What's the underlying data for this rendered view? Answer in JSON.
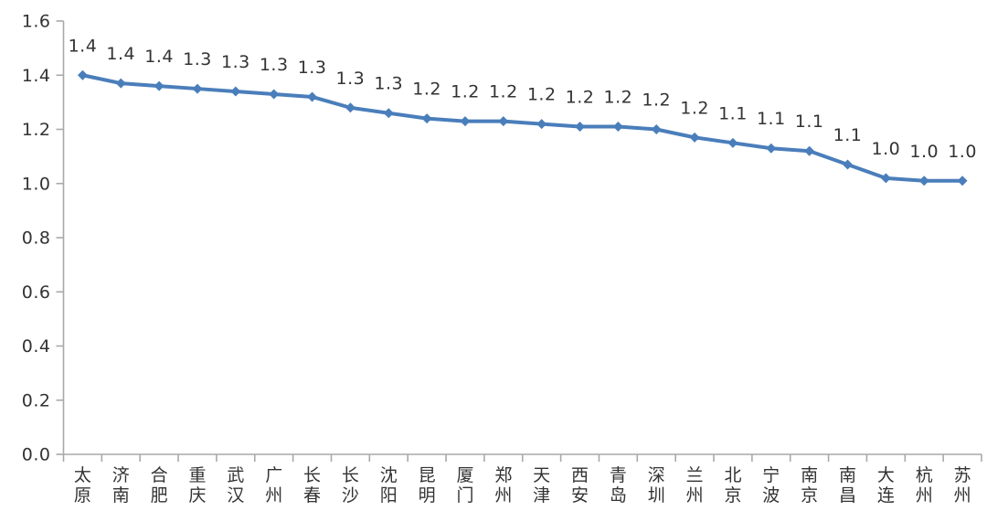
{
  "chart_data": {
    "type": "line",
    "title": "",
    "xlabel": "",
    "ylabel": "",
    "categories": [
      "太原",
      "济南",
      "合肥",
      "重庆",
      "武汉",
      "广州",
      "长春",
      "长沙",
      "沈阳",
      "昆明",
      "厦门",
      "郑州",
      "天津",
      "西安",
      "青岛",
      "深圳",
      "兰州",
      "北京",
      "宁波",
      "南京",
      "南昌",
      "大连",
      "杭州",
      "苏州"
    ],
    "values": [
      1.4,
      1.37,
      1.36,
      1.35,
      1.34,
      1.33,
      1.32,
      1.28,
      1.26,
      1.24,
      1.23,
      1.23,
      1.22,
      1.21,
      1.21,
      1.2,
      1.17,
      1.15,
      1.13,
      1.12,
      1.07,
      1.02,
      1.01,
      1.01
    ],
    "point_labels": [
      "1.4",
      "1.4",
      "1.4",
      "1.3",
      "1.3",
      "1.3",
      "1.3",
      "1.3",
      "1.3",
      "1.2",
      "1.2",
      "1.2",
      "1.2",
      "1.2",
      "1.2",
      "1.2",
      "1.2",
      "1.1",
      "1.1",
      "1.1",
      "1.1",
      "1.0",
      "1.0",
      "1.0"
    ],
    "yticks": [
      "0.0",
      "0.2",
      "0.4",
      "0.6",
      "0.8",
      "1.0",
      "1.2",
      "1.4",
      "1.6"
    ],
    "ylim": [
      0,
      1.6
    ],
    "grid": "off",
    "legend": "none",
    "marker": "diamond",
    "series_color": "#4a7ebb",
    "text_color": "#333333",
    "axis_color": "#a9a9a9"
  }
}
